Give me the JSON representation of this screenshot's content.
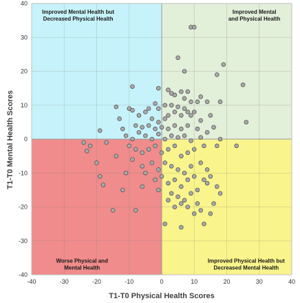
{
  "chart_data": {
    "type": "scatter",
    "xlabel": "T1-T0 Physical Health Scores",
    "ylabel": "T1-T0 Mental Health Scores",
    "xlim": [
      -40,
      40
    ],
    "ylim": [
      -40,
      40
    ],
    "x_ticks": [
      "-40",
      "-30",
      "-20",
      "-10",
      "0",
      "10",
      "20",
      "30",
      "40"
    ],
    "y_ticks": [
      "40",
      "30",
      "20",
      "10",
      "0",
      "-10",
      "-20",
      "-30",
      "-40"
    ],
    "grid": true,
    "quadrants": [
      {
        "position": "top-left",
        "lines": [
          "Improved Mental Health but",
          "Decreased Physical Health"
        ],
        "color": "#c6f3fb"
      },
      {
        "position": "top-right",
        "lines": [
          "Improved Mental",
          "and Physical Health"
        ],
        "color": "#e2efd9"
      },
      {
        "position": "bottom-left",
        "lines": [
          "Worse Physical and",
          "Mental Health"
        ],
        "color": "#f08c8c"
      },
      {
        "position": "bottom-right",
        "lines": [
          "Improved Physical Health but",
          "Decreased Mental Health"
        ],
        "color": "#f9f58c"
      }
    ],
    "marker_color": "#a9a9a9",
    "marker_edge": "#555555",
    "points": [
      [
        9,
        33
      ],
      [
        10,
        33
      ],
      [
        5,
        24
      ],
      [
        19,
        22
      ],
      [
        7,
        20
      ],
      [
        17,
        19
      ],
      [
        25,
        16
      ],
      [
        -9,
        15.5
      ],
      [
        -1,
        15
      ],
      [
        2,
        14.5
      ],
      [
        3,
        13.5
      ],
      [
        6,
        14
      ],
      [
        8,
        14
      ],
      [
        12,
        12.5
      ],
      [
        14,
        11
      ],
      [
        4,
        13
      ],
      [
        7,
        12
      ],
      [
        9,
        11
      ],
      [
        11,
        11
      ],
      [
        15,
        7
      ],
      [
        -14,
        9.5
      ],
      [
        -10,
        9
      ],
      [
        -9,
        8.5
      ],
      [
        -4,
        9
      ],
      [
        -2,
        10.5
      ],
      [
        -1,
        9
      ],
      [
        1,
        10
      ],
      [
        3,
        10
      ],
      [
        5,
        9.5
      ],
      [
        7,
        9
      ],
      [
        8,
        8
      ],
      [
        10,
        8
      ],
      [
        18,
        11
      ],
      [
        26,
        5
      ],
      [
        -13,
        6
      ],
      [
        -7,
        7
      ],
      [
        -5,
        8
      ],
      [
        -3,
        6
      ],
      [
        -1,
        5
      ],
      [
        1,
        6
      ],
      [
        2,
        7
      ],
      [
        4,
        8
      ],
      [
        6,
        7
      ],
      [
        9,
        7
      ],
      [
        12,
        5.5
      ],
      [
        -12,
        3
      ],
      [
        -8,
        4
      ],
      [
        -6,
        3.5
      ],
      [
        -4,
        4
      ],
      [
        -2,
        3
      ],
      [
        0,
        3.5
      ],
      [
        2,
        3
      ],
      [
        4,
        4
      ],
      [
        6,
        3
      ],
      [
        8,
        4
      ],
      [
        11,
        3
      ],
      [
        14,
        2
      ],
      [
        16,
        3.5
      ],
      [
        -19,
        2.5
      ],
      [
        -11,
        1
      ],
      [
        -9,
        0
      ],
      [
        -7,
        2
      ],
      [
        -5,
        1
      ],
      [
        -3,
        0
      ],
      [
        -1,
        1.5
      ],
      [
        1,
        0
      ],
      [
        3,
        1
      ],
      [
        5,
        0.5
      ],
      [
        7,
        1
      ],
      [
        9,
        -0.5
      ],
      [
        12,
        0.5
      ],
      [
        18,
        0
      ],
      [
        23,
        -2
      ],
      [
        -24,
        -1
      ],
      [
        -22,
        -2
      ],
      [
        -17,
        -1
      ],
      [
        -10,
        -2
      ],
      [
        -8,
        -3
      ],
      [
        -6,
        -4
      ],
      [
        -4,
        -3
      ],
      [
        -2,
        -2
      ],
      [
        0,
        -4
      ],
      [
        2,
        -3
      ],
      [
        4,
        -2
      ],
      [
        6,
        -5
      ],
      [
        8,
        -4
      ],
      [
        10,
        -3
      ],
      [
        13,
        -2
      ],
      [
        17,
        -2
      ],
      [
        -23,
        -3.5
      ],
      [
        -20,
        -7
      ],
      [
        -14,
        -5
      ],
      [
        -9,
        -6
      ],
      [
        -6,
        -8
      ],
      [
        -3,
        -7
      ],
      [
        -1,
        -9
      ],
      [
        1,
        -7
      ],
      [
        3,
        -8
      ],
      [
        5,
        -9
      ],
      [
        7,
        -10
      ],
      [
        9,
        -8
      ],
      [
        12,
        -7
      ],
      [
        14,
        -9
      ],
      [
        -19,
        -11
      ],
      [
        -11,
        -10
      ],
      [
        -5,
        -10
      ],
      [
        -2,
        -12
      ],
      [
        0,
        -11
      ],
      [
        2,
        -13
      ],
      [
        4,
        -12
      ],
      [
        6,
        -14
      ],
      [
        8,
        -12
      ],
      [
        10,
        -11
      ],
      [
        13,
        -12
      ],
      [
        15,
        -11
      ],
      [
        -18,
        -13.5
      ],
      [
        -12,
        -15
      ],
      [
        -6,
        -14
      ],
      [
        -1,
        -15
      ],
      [
        3,
        -16
      ],
      [
        5,
        -17
      ],
      [
        7,
        -18
      ],
      [
        9,
        -16
      ],
      [
        11,
        -15
      ],
      [
        14,
        -13
      ],
      [
        17,
        -14
      ],
      [
        18,
        -16
      ],
      [
        -15,
        -21
      ],
      [
        -8,
        -21
      ],
      [
        2,
        -18
      ],
      [
        4,
        -20
      ],
      [
        6,
        -19
      ],
      [
        8,
        -20
      ],
      [
        10,
        -22
      ],
      [
        12,
        -21
      ],
      [
        15,
        -22
      ],
      [
        16,
        -19
      ],
      [
        1,
        -25
      ],
      [
        6,
        -26
      ],
      [
        13,
        -25
      ],
      [
        11,
        -19
      ]
    ]
  }
}
